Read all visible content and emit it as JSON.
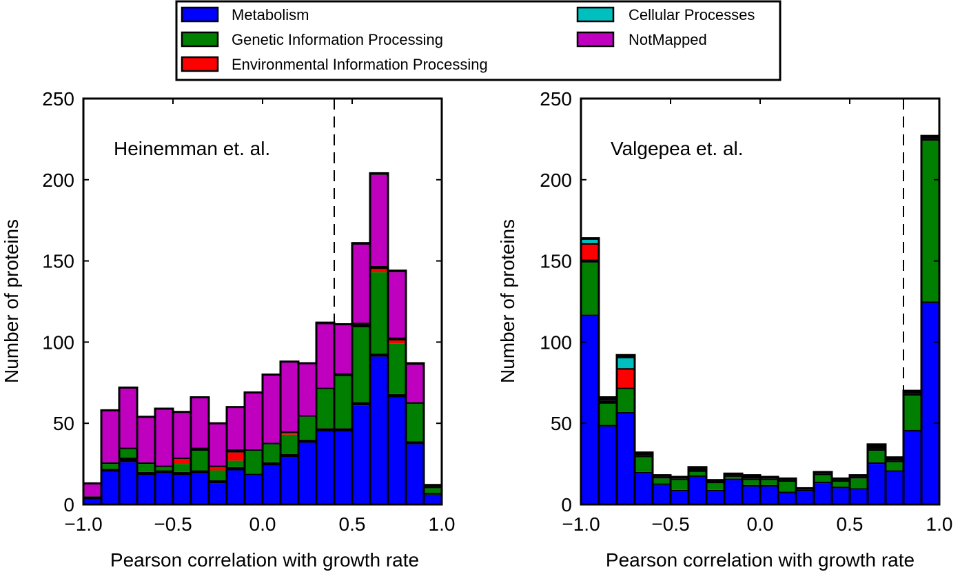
{
  "colors": {
    "Metabolism": "#0000ff",
    "Genetic Information Processing": "#007f00",
    "Environmental Information Processing": "#ff0000",
    "Cellular Processes": "#00bfbf",
    "NotMapped": "#bf00bf",
    "Unlabeled": "#000000"
  },
  "legend": {
    "items": [
      {
        "name": "Metabolism",
        "color": "#0000ff"
      },
      {
        "name": "Genetic Information Processing",
        "color": "#007f00"
      },
      {
        "name": "Environmental Information Processing",
        "color": "#ff0000"
      },
      {
        "name": "Cellular Processes",
        "color": "#00bfbf"
      },
      {
        "name": "NotMapped",
        "color": "#bf00bf"
      }
    ]
  },
  "chart_data": [
    {
      "type": "bar",
      "stacked": true,
      "annotation": "Heinemman et. al.",
      "xlabel": "Pearson correlation with growth rate",
      "ylabel": "Number of proteins",
      "xlim": [
        -1.0,
        1.0
      ],
      "ylim": [
        0,
        250
      ],
      "xticks": [
        "−1.0",
        "−0.5",
        "0.0",
        "0.5",
        "1.0"
      ],
      "yticks": [
        "0",
        "50",
        "100",
        "150",
        "200",
        "250"
      ],
      "threshold_line_x": 0.4,
      "bin_width": 0.1,
      "bins": [
        -0.95,
        -0.85,
        -0.75,
        -0.65,
        -0.55,
        -0.45,
        -0.35,
        -0.25,
        -0.15,
        -0.05,
        0.05,
        0.15,
        0.25,
        0.35,
        0.45,
        0.55,
        0.65,
        0.75,
        0.85,
        0.95
      ],
      "series": [
        {
          "name": "Metabolism",
          "values": [
            3,
            20,
            26,
            18,
            19,
            18,
            19,
            13,
            21,
            18,
            24,
            29,
            38,
            45,
            45,
            61,
            91,
            66,
            37,
            6
          ]
        },
        {
          "name": "",
          "values": [
            2,
            2,
            3,
            2,
            2,
            2,
            2,
            2,
            2,
            1,
            2,
            2,
            2,
            2,
            2,
            2,
            2,
            2,
            2,
            1
          ]
        },
        {
          "name": "Genetic Information Processing",
          "values": [
            0,
            3,
            5,
            5,
            2,
            5,
            12,
            6,
            4,
            14,
            11,
            12,
            14,
            24,
            32,
            46,
            50,
            31,
            23,
            3
          ]
        },
        {
          "name": "Environmental Information Processing",
          "values": [
            0,
            0,
            0,
            0,
            0,
            3,
            0,
            2,
            5,
            0,
            0,
            1,
            0,
            0,
            0,
            0,
            2,
            2,
            0,
            0
          ]
        },
        {
          "name": "",
          "values": [
            0,
            1,
            1,
            1,
            1,
            1,
            2,
            1,
            2,
            1,
            1,
            1,
            1,
            1,
            2,
            3,
            2,
            2,
            1,
            1
          ]
        },
        {
          "name": "NotMapped",
          "values": [
            8,
            32,
            37,
            28,
            35,
            28,
            31,
            26,
            26,
            35,
            42,
            43,
            32,
            39,
            30,
            48,
            56,
            40,
            23,
            0
          ]
        },
        {
          "name": "",
          "values": [
            0,
            0,
            0,
            0,
            0,
            0,
            0,
            0,
            0,
            0,
            0,
            0,
            0,
            1,
            0,
            1,
            1,
            1,
            1,
            1
          ]
        }
      ]
    },
    {
      "type": "bar",
      "stacked": true,
      "annotation": "Valgepea et. al.",
      "xlabel": "Pearson correlation with growth rate",
      "ylabel": "Number of proteins",
      "xlim": [
        -1.0,
        1.0
      ],
      "ylim": [
        0,
        250
      ],
      "xticks": [
        "−1.0",
        "−0.5",
        "0.0",
        "0.5",
        "1.0"
      ],
      "yticks": [
        "0",
        "50",
        "100",
        "150",
        "200",
        "250"
      ],
      "threshold_line_x": 0.8,
      "bin_width": 0.1,
      "bins": [
        -0.95,
        -0.85,
        -0.75,
        -0.65,
        -0.55,
        -0.45,
        -0.35,
        -0.25,
        -0.15,
        -0.05,
        0.05,
        0.15,
        0.25,
        0.35,
        0.45,
        0.55,
        0.65,
        0.75,
        0.85,
        0.95
      ],
      "series": [
        {
          "name": "Metabolism",
          "values": [
            116,
            48,
            56,
            19,
            12,
            8,
            17,
            8,
            15,
            11,
            11,
            7,
            8,
            13,
            10,
            9,
            25,
            20,
            45,
            124
          ]
        },
        {
          "name": "",
          "values": [
            1,
            1,
            1,
            1,
            1,
            1,
            1,
            1,
            1,
            1,
            1,
            1,
            1,
            1,
            1,
            1,
            1,
            1,
            1,
            1
          ]
        },
        {
          "name": "Genetic Information Processing",
          "values": [
            32,
            13,
            14,
            9,
            3,
            6,
            2,
            4,
            1,
            3,
            3,
            6,
            0,
            4,
            3,
            6,
            7,
            5,
            21,
            99
          ]
        },
        {
          "name": "",
          "values": [
            2,
            2,
            1,
            1,
            1,
            1,
            1,
            1,
            1,
            1,
            1,
            1,
            0,
            1,
            1,
            1,
            1,
            1,
            1,
            1
          ]
        },
        {
          "name": "Environmental Information Processing",
          "values": [
            9,
            0,
            11,
            0,
            0,
            0,
            0,
            0,
            0,
            0,
            0,
            0,
            0,
            0,
            0,
            0,
            0,
            0,
            0,
            0
          ]
        },
        {
          "name": "",
          "values": [
            1,
            0,
            1,
            0,
            0,
            0,
            0,
            0,
            0,
            0,
            0,
            0,
            0,
            0,
            0,
            0,
            0,
            0,
            0,
            0
          ]
        },
        {
          "name": "Cellular Processes",
          "values": [
            2,
            0,
            6,
            0,
            0,
            0,
            0,
            0,
            0,
            0,
            0,
            0,
            0,
            0,
            0,
            0,
            0,
            0,
            0,
            0
          ]
        },
        {
          "name": "",
          "values": [
            1,
            2,
            2,
            2,
            1,
            1,
            2,
            1,
            1,
            2,
            1,
            1,
            1,
            1,
            1,
            1,
            3,
            2,
            2,
            2
          ]
        }
      ]
    }
  ]
}
